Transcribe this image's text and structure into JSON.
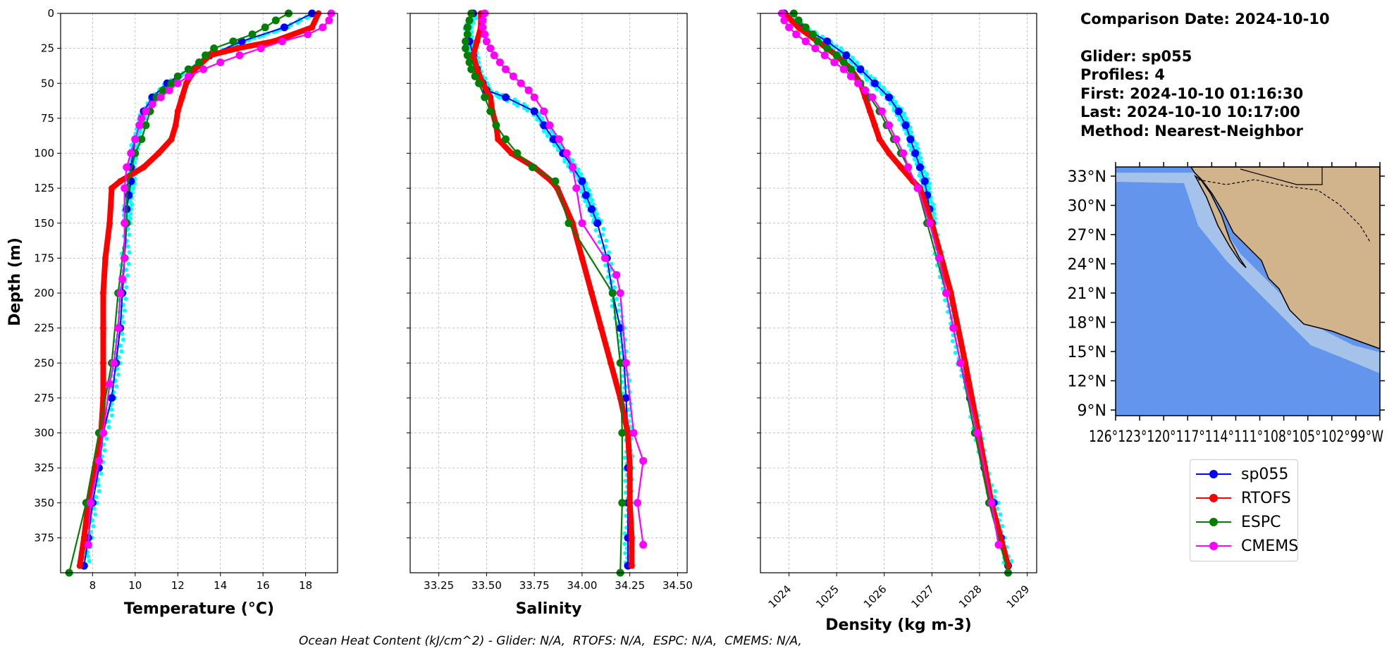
{
  "info": {
    "comparison": "Comparison Date: 2024-10-10",
    "glider": "Glider: sp055",
    "profiles": "Profiles: 4",
    "first": "First: 2024-10-10 01:16:30",
    "last": "Last: 2024-10-10 10:17:00",
    "method": "Method: Nearest-Neighbor"
  },
  "footer": "Ocean Heat Content (kJ/cm^2) - Glider: N/A,  RTOFS: N/A,  ESPC: N/A,  CMEMS: N/A,",
  "colors": {
    "glider": "#0000ff",
    "glider_raw": "#00ffff",
    "rtofs": "#ff0000",
    "espc": "#008000",
    "cmems": "#ff00ff",
    "ocean": "#6495ed",
    "shelf": "#a4c2ea",
    "land": "#d2b48c"
  },
  "legend": [
    {
      "label": "sp055",
      "color": "#0000ff"
    },
    {
      "label": "RTOFS",
      "color": "#ff0000"
    },
    {
      "label": "ESPC",
      "color": "#008000"
    },
    {
      "label": "CMEMS",
      "color": "#ff00ff"
    }
  ],
  "map": {
    "lat_ticks": [
      "33°N",
      "30°N",
      "27°N",
      "24°N",
      "21°N",
      "18°N",
      "15°N",
      "12°N",
      "9°N"
    ],
    "lon_labels": "126°123°120°117°114°111°108°105°102°99°W"
  },
  "chart_data": [
    {
      "type": "line",
      "xlabel": "Temperature (°C)",
      "ylabel": "Depth (m)",
      "xlim": [
        6.5,
        19.5
      ],
      "ylim": [
        400,
        0
      ],
      "xticks": [
        "8",
        "10",
        "12",
        "14",
        "16",
        "18"
      ],
      "yticks": [
        "0",
        "25",
        "50",
        "75",
        "100",
        "125",
        "150",
        "175",
        "200",
        "225",
        "250",
        "275",
        "300",
        "325",
        "350",
        "375"
      ],
      "grid": true,
      "series": [
        {
          "name": "sp055",
          "depth": [
            0,
            10,
            20,
            30,
            40,
            50,
            60,
            70,
            80,
            90,
            100,
            110,
            120,
            130,
            140,
            150,
            175,
            200,
            225,
            250,
            275,
            300,
            325,
            350,
            375,
            395
          ],
          "values": [
            18.3,
            17.0,
            15.0,
            13.5,
            12.5,
            11.5,
            10.8,
            10.4,
            10.2,
            10.0,
            9.9,
            9.8,
            9.8,
            9.7,
            9.6,
            9.6,
            9.5,
            9.4,
            9.3,
            9.1,
            8.9,
            8.5,
            8.3,
            8.0,
            7.8,
            7.6
          ]
        },
        {
          "name": "RTOFS",
          "depth": [
            0,
            10,
            20,
            25,
            30,
            40,
            50,
            60,
            70,
            80,
            90,
            100,
            110,
            120,
            125,
            150,
            175,
            200,
            225,
            250,
            275,
            300,
            325,
            350,
            375,
            395
          ],
          "values": [
            18.6,
            18.3,
            16.5,
            14.8,
            13.5,
            12.8,
            12.4,
            12.2,
            12.0,
            11.9,
            11.7,
            11.1,
            10.4,
            9.3,
            8.9,
            8.8,
            8.6,
            8.5,
            8.5,
            8.5,
            8.5,
            8.4,
            8.1,
            7.8,
            7.6,
            7.4
          ]
        },
        {
          "name": "ESPC",
          "depth": [
            0,
            5,
            10,
            15,
            20,
            25,
            30,
            35,
            40,
            45,
            50,
            55,
            60,
            65,
            70,
            80,
            90,
            100,
            125,
            150,
            200,
            250,
            300,
            350,
            400
          ],
          "values": [
            17.2,
            16.6,
            16.1,
            15.5,
            14.6,
            13.7,
            13.3,
            13.0,
            12.5,
            12.0,
            11.7,
            11.3,
            11.0,
            10.8,
            10.7,
            10.5,
            10.3,
            10.0,
            9.6,
            9.6,
            9.2,
            8.9,
            8.3,
            7.7,
            6.9
          ]
        },
        {
          "name": "CMEMS",
          "depth": [
            0,
            5,
            10,
            15,
            20,
            25,
            30,
            35,
            40,
            45,
            50,
            55,
            60,
            65,
            70,
            75,
            80,
            90,
            100,
            110,
            125,
            150,
            175,
            190,
            200,
            225,
            250,
            265,
            300,
            320,
            350,
            380
          ],
          "values": [
            19.2,
            19.1,
            18.8,
            18.1,
            16.9,
            15.9,
            14.9,
            14.0,
            13.2,
            12.5,
            12.0,
            11.6,
            11.2,
            10.8,
            10.5,
            10.3,
            10.2,
            10.0,
            9.8,
            9.6,
            9.5,
            9.5,
            9.5,
            9.4,
            9.3,
            9.2,
            9.0,
            8.8,
            8.5,
            8.3,
            7.9,
            7.8
          ]
        }
      ]
    },
    {
      "type": "line",
      "xlabel": "Salinity",
      "xlim": [
        33.1,
        34.55
      ],
      "ylim": [
        400,
        0
      ],
      "xticks": [
        "33.25",
        "33.50",
        "33.75",
        "34.00",
        "34.25",
        "34.50"
      ],
      "grid": true,
      "series": [
        {
          "name": "sp055",
          "depth": [
            0,
            10,
            20,
            30,
            40,
            50,
            55,
            60,
            70,
            80,
            90,
            100,
            110,
            120,
            130,
            140,
            150,
            175,
            200,
            225,
            250,
            275,
            300,
            325,
            350,
            375,
            395
          ],
          "values": [
            33.43,
            33.4,
            33.41,
            33.43,
            33.45,
            33.48,
            33.5,
            33.6,
            33.75,
            33.8,
            33.85,
            33.9,
            33.95,
            34.0,
            34.02,
            34.05,
            34.08,
            34.13,
            34.16,
            34.2,
            34.22,
            34.23,
            34.24,
            34.24,
            34.24,
            34.24,
            34.24
          ]
        },
        {
          "name": "RTOFS",
          "depth": [
            0,
            10,
            20,
            30,
            40,
            50,
            60,
            70,
            80,
            90,
            100,
            110,
            120,
            125,
            150,
            175,
            200,
            225,
            250,
            275,
            300,
            325,
            350,
            375,
            395
          ],
          "values": [
            33.47,
            33.47,
            33.45,
            33.43,
            33.45,
            33.48,
            33.52,
            33.53,
            33.55,
            33.56,
            33.63,
            33.75,
            33.84,
            33.87,
            33.95,
            34.0,
            34.05,
            34.1,
            34.15,
            34.2,
            34.24,
            34.25,
            34.25,
            34.26,
            34.26
          ]
        },
        {
          "name": "ESPC",
          "depth": [
            0,
            5,
            10,
            15,
            20,
            25,
            30,
            35,
            40,
            45,
            50,
            60,
            70,
            80,
            90,
            100,
            110,
            120,
            150,
            200,
            250,
            300,
            350,
            400
          ],
          "values": [
            33.42,
            33.41,
            33.4,
            33.4,
            33.39,
            33.39,
            33.4,
            33.41,
            33.42,
            33.44,
            33.46,
            33.49,
            33.52,
            33.55,
            33.6,
            33.66,
            33.74,
            33.86,
            33.93,
            34.16,
            34.2,
            34.21,
            34.21,
            34.2
          ]
        },
        {
          "name": "CMEMS",
          "depth": [
            0,
            5,
            10,
            15,
            20,
            25,
            30,
            35,
            40,
            45,
            50,
            55,
            60,
            70,
            80,
            90,
            100,
            110,
            125,
            150,
            175,
            187,
            200,
            250,
            300,
            320,
            350,
            380
          ],
          "values": [
            33.49,
            33.48,
            33.48,
            33.49,
            33.5,
            33.52,
            33.54,
            33.57,
            33.6,
            33.64,
            33.68,
            33.72,
            33.75,
            33.8,
            33.83,
            33.88,
            33.92,
            33.95,
            33.97,
            34.0,
            34.12,
            34.18,
            34.2,
            34.23,
            34.27,
            34.32,
            34.29,
            34.32
          ]
        }
      ]
    },
    {
      "type": "line",
      "xlabel": "Density (kg m-3)",
      "xlim": [
        1023.4,
        1029.2
      ],
      "ylim": [
        400,
        0
      ],
      "xticks": [
        "1024",
        "1025",
        "1026",
        "1027",
        "1028",
        "1029"
      ],
      "grid": true,
      "series": [
        {
          "name": "sp055",
          "depth": [
            0,
            10,
            20,
            30,
            40,
            50,
            60,
            70,
            80,
            90,
            100,
            110,
            120,
            130,
            140,
            150,
            175,
            200,
            225,
            250,
            275,
            300,
            325,
            350,
            375,
            395
          ],
          "values": [
            1023.9,
            1024.3,
            1024.8,
            1025.2,
            1025.5,
            1025.8,
            1026.1,
            1026.3,
            1026.45,
            1026.55,
            1026.65,
            1026.75,
            1026.85,
            1026.9,
            1026.95,
            1027.0,
            1027.15,
            1027.3,
            1027.45,
            1027.6,
            1027.8,
            1027.95,
            1028.1,
            1028.3,
            1028.45,
            1028.6
          ]
        },
        {
          "name": "RTOFS",
          "depth": [
            0,
            10,
            20,
            30,
            40,
            50,
            60,
            70,
            80,
            90,
            100,
            110,
            120,
            125,
            150,
            200,
            250,
            300,
            350,
            395
          ],
          "values": [
            1023.9,
            1024.2,
            1024.6,
            1025.0,
            1025.3,
            1025.5,
            1025.6,
            1025.7,
            1025.8,
            1025.9,
            1026.1,
            1026.35,
            1026.6,
            1026.75,
            1027.0,
            1027.4,
            1027.7,
            1027.98,
            1028.25,
            1028.6
          ]
        },
        {
          "name": "ESPC",
          "depth": [
            0,
            5,
            10,
            15,
            20,
            25,
            30,
            35,
            40,
            50,
            60,
            70,
            80,
            90,
            100,
            110,
            125,
            150,
            200,
            250,
            300,
            350,
            400
          ],
          "values": [
            1024.1,
            1024.2,
            1024.35,
            1024.5,
            1024.6,
            1024.8,
            1025.0,
            1025.15,
            1025.3,
            1025.5,
            1025.7,
            1025.9,
            1026.05,
            1026.2,
            1026.35,
            1026.5,
            1026.7,
            1026.9,
            1027.3,
            1027.6,
            1027.9,
            1028.2,
            1028.6
          ]
        },
        {
          "name": "CMEMS",
          "depth": [
            0,
            5,
            10,
            15,
            20,
            25,
            30,
            35,
            40,
            45,
            50,
            55,
            60,
            70,
            80,
            90,
            100,
            110,
            125,
            150,
            175,
            200,
            225,
            250,
            300,
            350,
            380
          ],
          "values": [
            1023.85,
            1023.9,
            1024.0,
            1024.15,
            1024.35,
            1024.55,
            1024.75,
            1024.95,
            1025.15,
            1025.3,
            1025.45,
            1025.6,
            1025.75,
            1025.95,
            1026.1,
            1026.25,
            1026.4,
            1026.5,
            1026.7,
            1026.95,
            1027.15,
            1027.3,
            1027.45,
            1027.6,
            1027.95,
            1028.25,
            1028.4
          ]
        }
      ]
    }
  ]
}
